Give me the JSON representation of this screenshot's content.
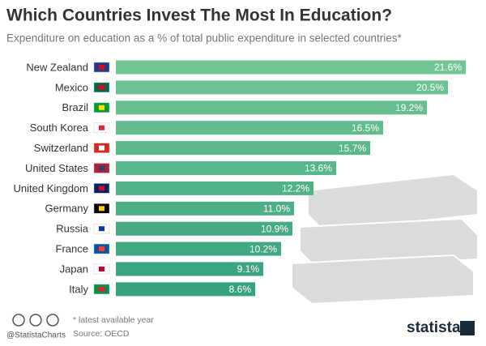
{
  "chart_data": {
    "type": "bar",
    "orientation": "horizontal",
    "title": "Which Countries Invest The Most In Education?",
    "subtitle": "Expenditure on education as a % of total public expenditure in selected countries*",
    "categories": [
      "New Zealand",
      "Mexico",
      "Brazil",
      "South Korea",
      "Switzerland",
      "United States",
      "United Kingdom",
      "Germany",
      "Russia",
      "France",
      "Japan",
      "Italy"
    ],
    "values": [
      21.6,
      20.5,
      19.2,
      16.5,
      15.7,
      13.6,
      12.2,
      11.0,
      10.9,
      10.2,
      9.1,
      8.6
    ],
    "value_labels": [
      "21.6%",
      "20.5%",
      "19.2%",
      "16.5%",
      "15.7%",
      "13.6%",
      "12.2%",
      "11.0%",
      "10.9%",
      "10.2%",
      "9.1%",
      "8.6%"
    ],
    "colors": [
      "#72c594",
      "#6cc292",
      "#67bf90",
      "#62bc8e",
      "#5cb98c",
      "#57b68a",
      "#51b288",
      "#4caf86",
      "#46ab84",
      "#41a882",
      "#3ba580",
      "#36a27e"
    ],
    "note": "* latest available year",
    "source": "Source: OECD",
    "handle": "@StatistaCharts",
    "brand": "statista"
  }
}
